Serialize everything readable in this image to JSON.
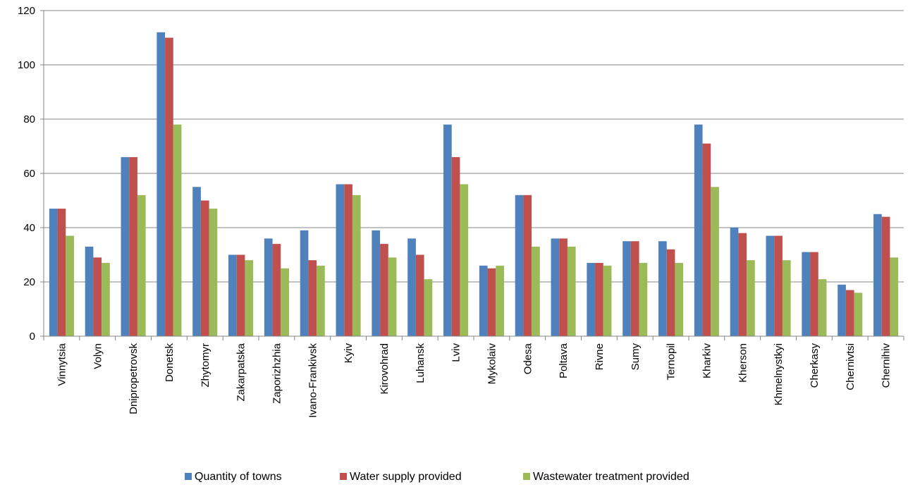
{
  "chart_data": {
    "type": "bar",
    "title": "",
    "xlabel": "",
    "ylabel": "",
    "ylim": [
      0,
      120
    ],
    "yticks": [
      0,
      20,
      40,
      60,
      80,
      100,
      120
    ],
    "grid": "horizontal",
    "legend_position": "bottom",
    "categories": [
      "Vinnytsia",
      "Volyn",
      "Dnipropetrovsk",
      "Donetsk",
      "Zhytomyr",
      "Zakarpatska",
      "Zaporizhzhia",
      "Ivano-Frankivsk",
      "Kyiv",
      "Kirovohrad",
      "Luhansk",
      "Lviv",
      "Mykolaiv",
      "Odesa",
      "Poltava",
      "Rivne",
      "Sumy",
      "Ternopil",
      "Kharkiv",
      "Kherson",
      "Khmelnystkyi",
      "Cherkasy",
      "Chernivtsi",
      "Chernihiv"
    ],
    "series": [
      {
        "name": "Quantity of towns",
        "color": "#4f81bd",
        "values": [
          47,
          33,
          66,
          112,
          55,
          30,
          36,
          39,
          56,
          39,
          36,
          78,
          26,
          52,
          36,
          27,
          35,
          35,
          78,
          40,
          37,
          31,
          19,
          45
        ]
      },
      {
        "name": "Water supply provided",
        "color": "#c0504d",
        "values": [
          47,
          29,
          66,
          110,
          50,
          30,
          34,
          28,
          56,
          34,
          30,
          66,
          25,
          52,
          36,
          27,
          35,
          32,
          71,
          38,
          37,
          31,
          17,
          44
        ]
      },
      {
        "name": "Wastewater treatment provided",
        "color": "#9bbb59",
        "values": [
          37,
          27,
          52,
          78,
          47,
          28,
          25,
          26,
          52,
          29,
          21,
          56,
          26,
          33,
          33,
          26,
          27,
          27,
          55,
          28,
          28,
          21,
          16,
          29
        ]
      }
    ]
  },
  "colors": {
    "grid": "#868686",
    "axis": "#868686"
  }
}
